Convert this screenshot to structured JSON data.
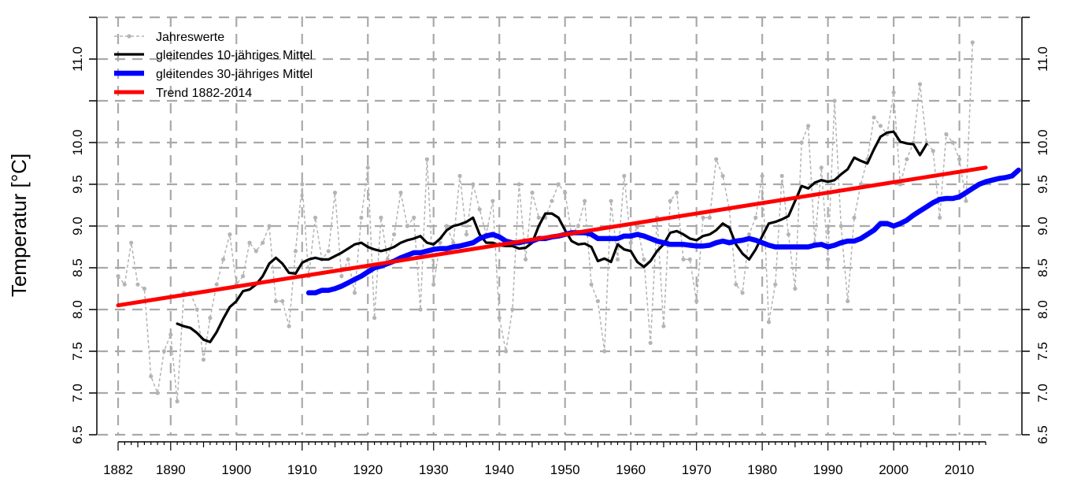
{
  "chart_data": {
    "type": "line",
    "title": "",
    "xlabel": "",
    "ylabel": "Temperatur [°C]",
    "xlim": [
      1882,
      2014
    ],
    "ylim": [
      6.5,
      11.5
    ],
    "x_ticks": [
      1882,
      1890,
      1900,
      1910,
      1920,
      1930,
      1940,
      1950,
      1960,
      1970,
      1980,
      1990,
      2000,
      2010
    ],
    "y_ticks": [
      "6.5",
      "7.0",
      "7.5",
      "8.0",
      "8.5",
      "9.0",
      "9.5",
      "10.0",
      "11.0"
    ],
    "grid": true,
    "legend_position": "top-left",
    "series": [
      {
        "name": "Jahreswerte",
        "color": "#b4b4b4",
        "style": "dashed-points",
        "x_start": 1882,
        "values": [
          8.4,
          8.3,
          8.8,
          8.3,
          8.25,
          7.2,
          7.0,
          7.5,
          7.7,
          6.9,
          8.2,
          8.2,
          8.0,
          7.4,
          7.9,
          8.3,
          8.6,
          8.9,
          8.3,
          8.4,
          8.8,
          8.7,
          8.8,
          9.0,
          8.1,
          8.1,
          7.8,
          8.7,
          9.5,
          8.4,
          9.1,
          8.6,
          8.7,
          9.4,
          8.4,
          8.6,
          8.2,
          9.1,
          9.7,
          7.9,
          9.1,
          8.6,
          8.9,
          9.4,
          9.0,
          9.1,
          8.0,
          9.8,
          8.3,
          8.8,
          9.0,
          8.8,
          9.6,
          8.9,
          9.5,
          9.2,
          8.9,
          9.3,
          7.9,
          7.5,
          8.0,
          9.5,
          8.6,
          9.4,
          9.1,
          9.1,
          9.3,
          9.5,
          9.4,
          8.9,
          9.0,
          9.3,
          8.3,
          8.1,
          7.5,
          9.3,
          8.6,
          9.6,
          8.8,
          9.0,
          8.6,
          7.6,
          9.1,
          7.8,
          9.3,
          9.4,
          8.6,
          8.6,
          8.1,
          9.1,
          9.1,
          9.8,
          9.6,
          9.2,
          8.3,
          8.2,
          8.9,
          9.1,
          9.6,
          7.85,
          8.3,
          9.6,
          8.9,
          8.25,
          10.0,
          10.2,
          8.8,
          9.7,
          8.6,
          10.5,
          9.0,
          8.1,
          9.1,
          9.5,
          9.8,
          10.3,
          10.2,
          10.1,
          10.6,
          9.5,
          9.8,
          10.0,
          10.7,
          10.0,
          9.9,
          9.1,
          10.1,
          10.0,
          9.8,
          9.3,
          11.2
        ]
      },
      {
        "name": "gleitendes 10-jähriges Mittel",
        "color": "#000000",
        "style": "line",
        "x_start": 1891,
        "values": [
          7.83,
          7.8,
          7.78,
          7.72,
          7.64,
          7.61,
          7.73,
          7.89,
          8.03,
          8.1,
          8.22,
          8.24,
          8.3,
          8.4,
          8.55,
          8.62,
          8.55,
          8.44,
          8.43,
          8.56,
          8.6,
          8.62,
          8.6,
          8.6,
          8.64,
          8.68,
          8.73,
          8.78,
          8.8,
          8.75,
          8.72,
          8.7,
          8.72,
          8.75,
          8.8,
          8.83,
          8.85,
          8.88,
          8.8,
          8.78,
          8.85,
          8.95,
          9.0,
          9.02,
          9.05,
          9.1,
          8.9,
          8.8,
          8.8,
          8.77,
          8.76,
          8.76,
          8.73,
          8.74,
          8.8,
          9.0,
          9.15,
          9.15,
          9.1,
          8.95,
          8.82,
          8.78,
          8.79,
          8.75,
          8.58,
          8.61,
          8.57,
          8.78,
          8.72,
          8.7,
          8.57,
          8.51,
          8.58,
          8.7,
          8.78,
          8.92,
          8.94,
          8.9,
          8.85,
          8.83,
          8.88,
          8.9,
          8.95,
          9.03,
          8.98,
          8.78,
          8.67,
          8.6,
          8.72,
          8.88,
          9.03,
          9.05,
          9.08,
          9.12,
          9.3,
          9.48,
          9.45,
          9.52,
          9.55,
          9.53,
          9.55,
          9.62,
          9.68,
          9.82,
          9.78,
          9.75,
          9.92,
          10.07,
          10.12,
          10.13,
          10.01,
          9.99,
          9.98,
          9.85,
          9.98
        ]
      },
      {
        "name": "gleitendes 30-jähriges Mittel",
        "color": "#0000ff",
        "style": "line",
        "x_start": 1911,
        "values": [
          8.2,
          8.2,
          8.23,
          8.23,
          8.25,
          8.28,
          8.32,
          8.36,
          8.4,
          8.45,
          8.5,
          8.52,
          8.55,
          8.58,
          8.62,
          8.65,
          8.68,
          8.68,
          8.7,
          8.72,
          8.73,
          8.73,
          8.75,
          8.76,
          8.78,
          8.8,
          8.85,
          8.88,
          8.9,
          8.87,
          8.82,
          8.8,
          8.8,
          8.82,
          8.82,
          8.85,
          8.85,
          8.87,
          8.88,
          8.9,
          8.92,
          8.92,
          8.92,
          8.9,
          8.85,
          8.85,
          8.85,
          8.85,
          8.88,
          8.88,
          8.9,
          8.88,
          8.85,
          8.82,
          8.8,
          8.78,
          8.78,
          8.78,
          8.77,
          8.76,
          8.76,
          8.77,
          8.8,
          8.82,
          8.8,
          8.82,
          8.83,
          8.85,
          8.83,
          8.8,
          8.77,
          8.75,
          8.75,
          8.75,
          8.75,
          8.75,
          8.75,
          8.77,
          8.78,
          8.75,
          8.77,
          8.8,
          8.82,
          8.82,
          8.85,
          8.9,
          8.95,
          9.03,
          9.03,
          9.0,
          9.03,
          9.07,
          9.13,
          9.18,
          9.23,
          9.28,
          9.32,
          9.33,
          9.33,
          9.35,
          9.4,
          9.45,
          9.5,
          9.53,
          9.55,
          9.57,
          9.58,
          9.6,
          9.67
        ]
      },
      {
        "name": "Trend 1882-2014",
        "color": "#ff0000",
        "style": "line",
        "x": [
          1882,
          2014
        ],
        "values": [
          8.05,
          9.7
        ]
      }
    ]
  }
}
